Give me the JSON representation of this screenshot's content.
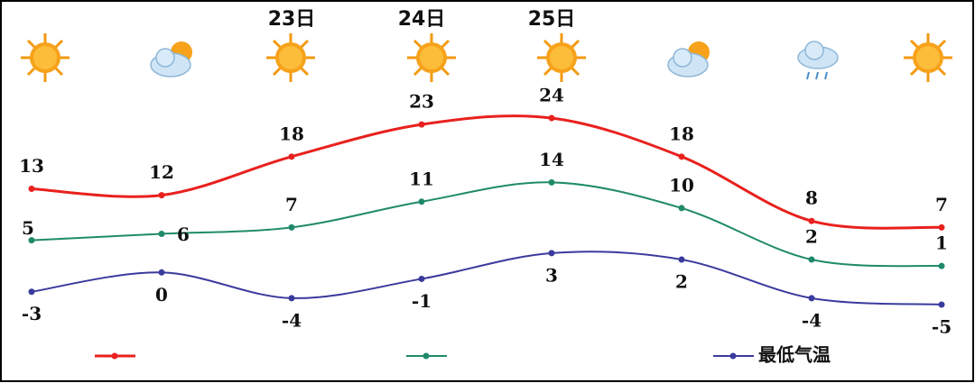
{
  "chart_data": {
    "type": "line",
    "categories": [
      null,
      null,
      "23日",
      "24日",
      "25日",
      null,
      null,
      null
    ],
    "series": [
      {
        "color": "#e8211e",
        "values": [
          13,
          12,
          18,
          23,
          24,
          18,
          8,
          7
        ]
      },
      {
        "color": "#1f8a6a",
        "values": [
          5,
          6,
          7,
          11,
          14,
          10,
          2,
          1
        ]
      },
      {
        "name": "最低气温",
        "color": "#3a3a9e",
        "values": [
          -3,
          0,
          -4,
          -1,
          3,
          2,
          -4,
          -5
        ]
      }
    ]
  }
}
